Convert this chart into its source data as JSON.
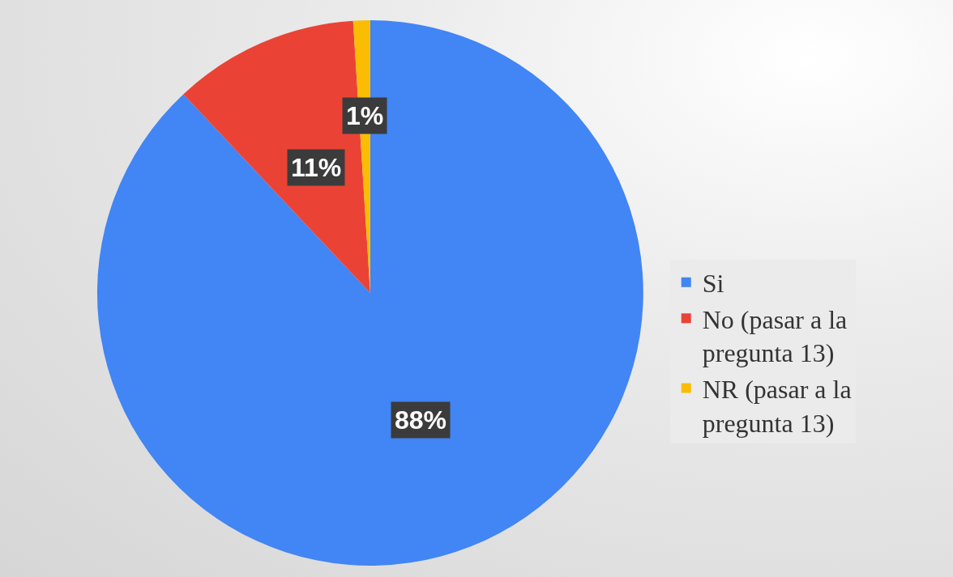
{
  "chart_data": {
    "type": "pie",
    "categories": [
      "Si",
      "No (pasar a la pregunta 13)",
      "NR (pasar a la pregunta 13)"
    ],
    "values": [
      88,
      11,
      1
    ],
    "value_labels": [
      "88%",
      "11%",
      "1%"
    ],
    "colors": [
      "#4285f4",
      "#ea4335",
      "#fbbc04"
    ],
    "legend": "right"
  }
}
